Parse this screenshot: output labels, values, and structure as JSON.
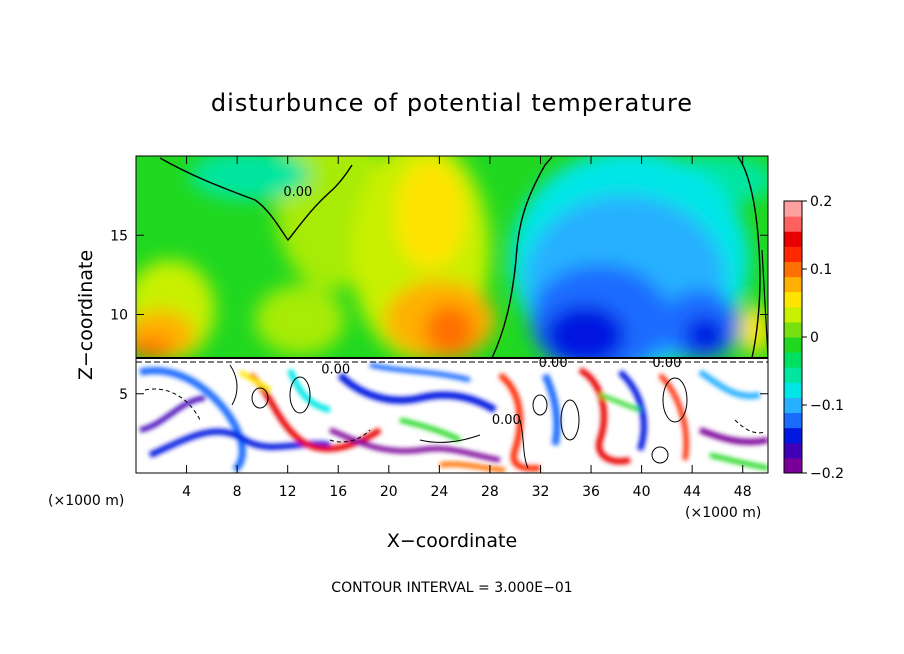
{
  "chart_data": {
    "type": "heatmap",
    "title": "disturbunce of potential temperature",
    "xlabel": "X−coordinate",
    "ylabel": "Z−coordinate",
    "x_unit_left": "(×1000 m)",
    "x_unit_right": "(×1000 m)",
    "footer": "CONTOUR INTERVAL = 3.000E−01",
    "xlim": [
      0,
      50
    ],
    "ylim": [
      0,
      20
    ],
    "x_ticks": [
      4,
      8,
      12,
      16,
      20,
      24,
      28,
      32,
      36,
      40,
      44,
      48
    ],
    "y_ticks": [
      5,
      10,
      15
    ],
    "colorbar": {
      "range": [
        -0.2,
        0.2
      ],
      "tick_values": [
        0.2,
        0.1,
        0,
        -0.1,
        -0.2
      ],
      "tick_labels": [
        "0.2",
        "0.1",
        "0",
        "−0.1",
        "−0.2"
      ],
      "colors": [
        "#7a0099",
        "#3f00b8",
        "#0018e0",
        "#1a6cff",
        "#26b0ff",
        "#00e6e6",
        "#00e6a0",
        "#00e060",
        "#20d820",
        "#78e010",
        "#c8f000",
        "#ffe400",
        "#ffb000",
        "#ff7000",
        "#ff2800",
        "#e80000",
        "#ff6060",
        "#ffa0a0"
      ]
    },
    "contour_labels": [
      {
        "text": "0.00",
        "x": 12.8,
        "y": 17.8
      },
      {
        "text": "0.00",
        "x": 15.8,
        "y": 6.6
      },
      {
        "text": "0.00",
        "x": 33.0,
        "y": 7.0
      },
      {
        "text": "0.00",
        "x": 42.0,
        "y": 7.0
      },
      {
        "text": "0.00",
        "x": 29.3,
        "y": 3.4
      }
    ]
  }
}
